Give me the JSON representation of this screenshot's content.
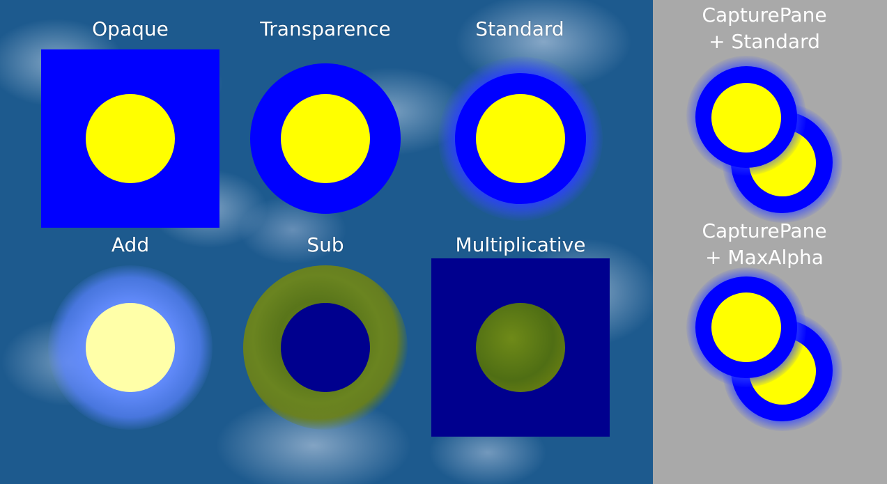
{
  "tiles": {
    "opaque": "Opaque",
    "transparence": "Transparence",
    "standard": "Standard",
    "add": "Add",
    "sub": "Sub",
    "multiplicative": "Multiplicative"
  },
  "panel": {
    "standard_line1": "CapturePane",
    "standard_line2": "+ Standard",
    "maxalpha_line1": "CapturePane",
    "maxalpha_line2": "+ MaxAlpha"
  },
  "colors": {
    "blue": "#0000ff",
    "yellow": "#ffff00",
    "panel_gray": "#a9a9a9"
  }
}
